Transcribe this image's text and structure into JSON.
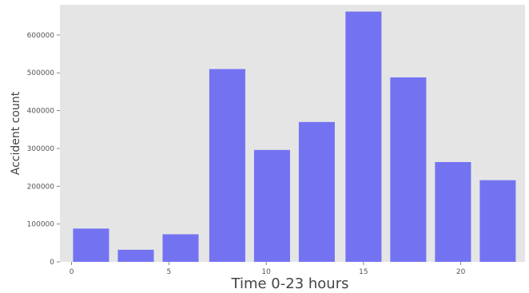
{
  "chart_data": {
    "type": "bar",
    "x": [
      1,
      3.3,
      5.6,
      8,
      10.3,
      12.6,
      15,
      17.3,
      19.6,
      21.9
    ],
    "values": [
      88000,
      32000,
      73000,
      510000,
      296000,
      370000,
      662000,
      488000,
      264000,
      216000
    ],
    "xlabel": "Time 0-23 hours",
    "ylabel": "Accident count",
    "xlim": [
      -0.6,
      23.3
    ],
    "ylim": [
      0,
      680000
    ],
    "xticks": [
      0,
      5,
      10,
      15,
      20
    ],
    "xtick_labels": [
      "0",
      "5",
      "10",
      "15",
      "20"
    ],
    "yticks": [
      0,
      100000,
      200000,
      300000,
      400000,
      500000,
      600000
    ],
    "ytick_labels": [
      "0",
      "100000",
      "200000",
      "300000",
      "400000",
      "500000",
      "600000"
    ],
    "grid": false,
    "bar_color": "#7373f2",
    "plot_background": "#e5e5e5"
  }
}
